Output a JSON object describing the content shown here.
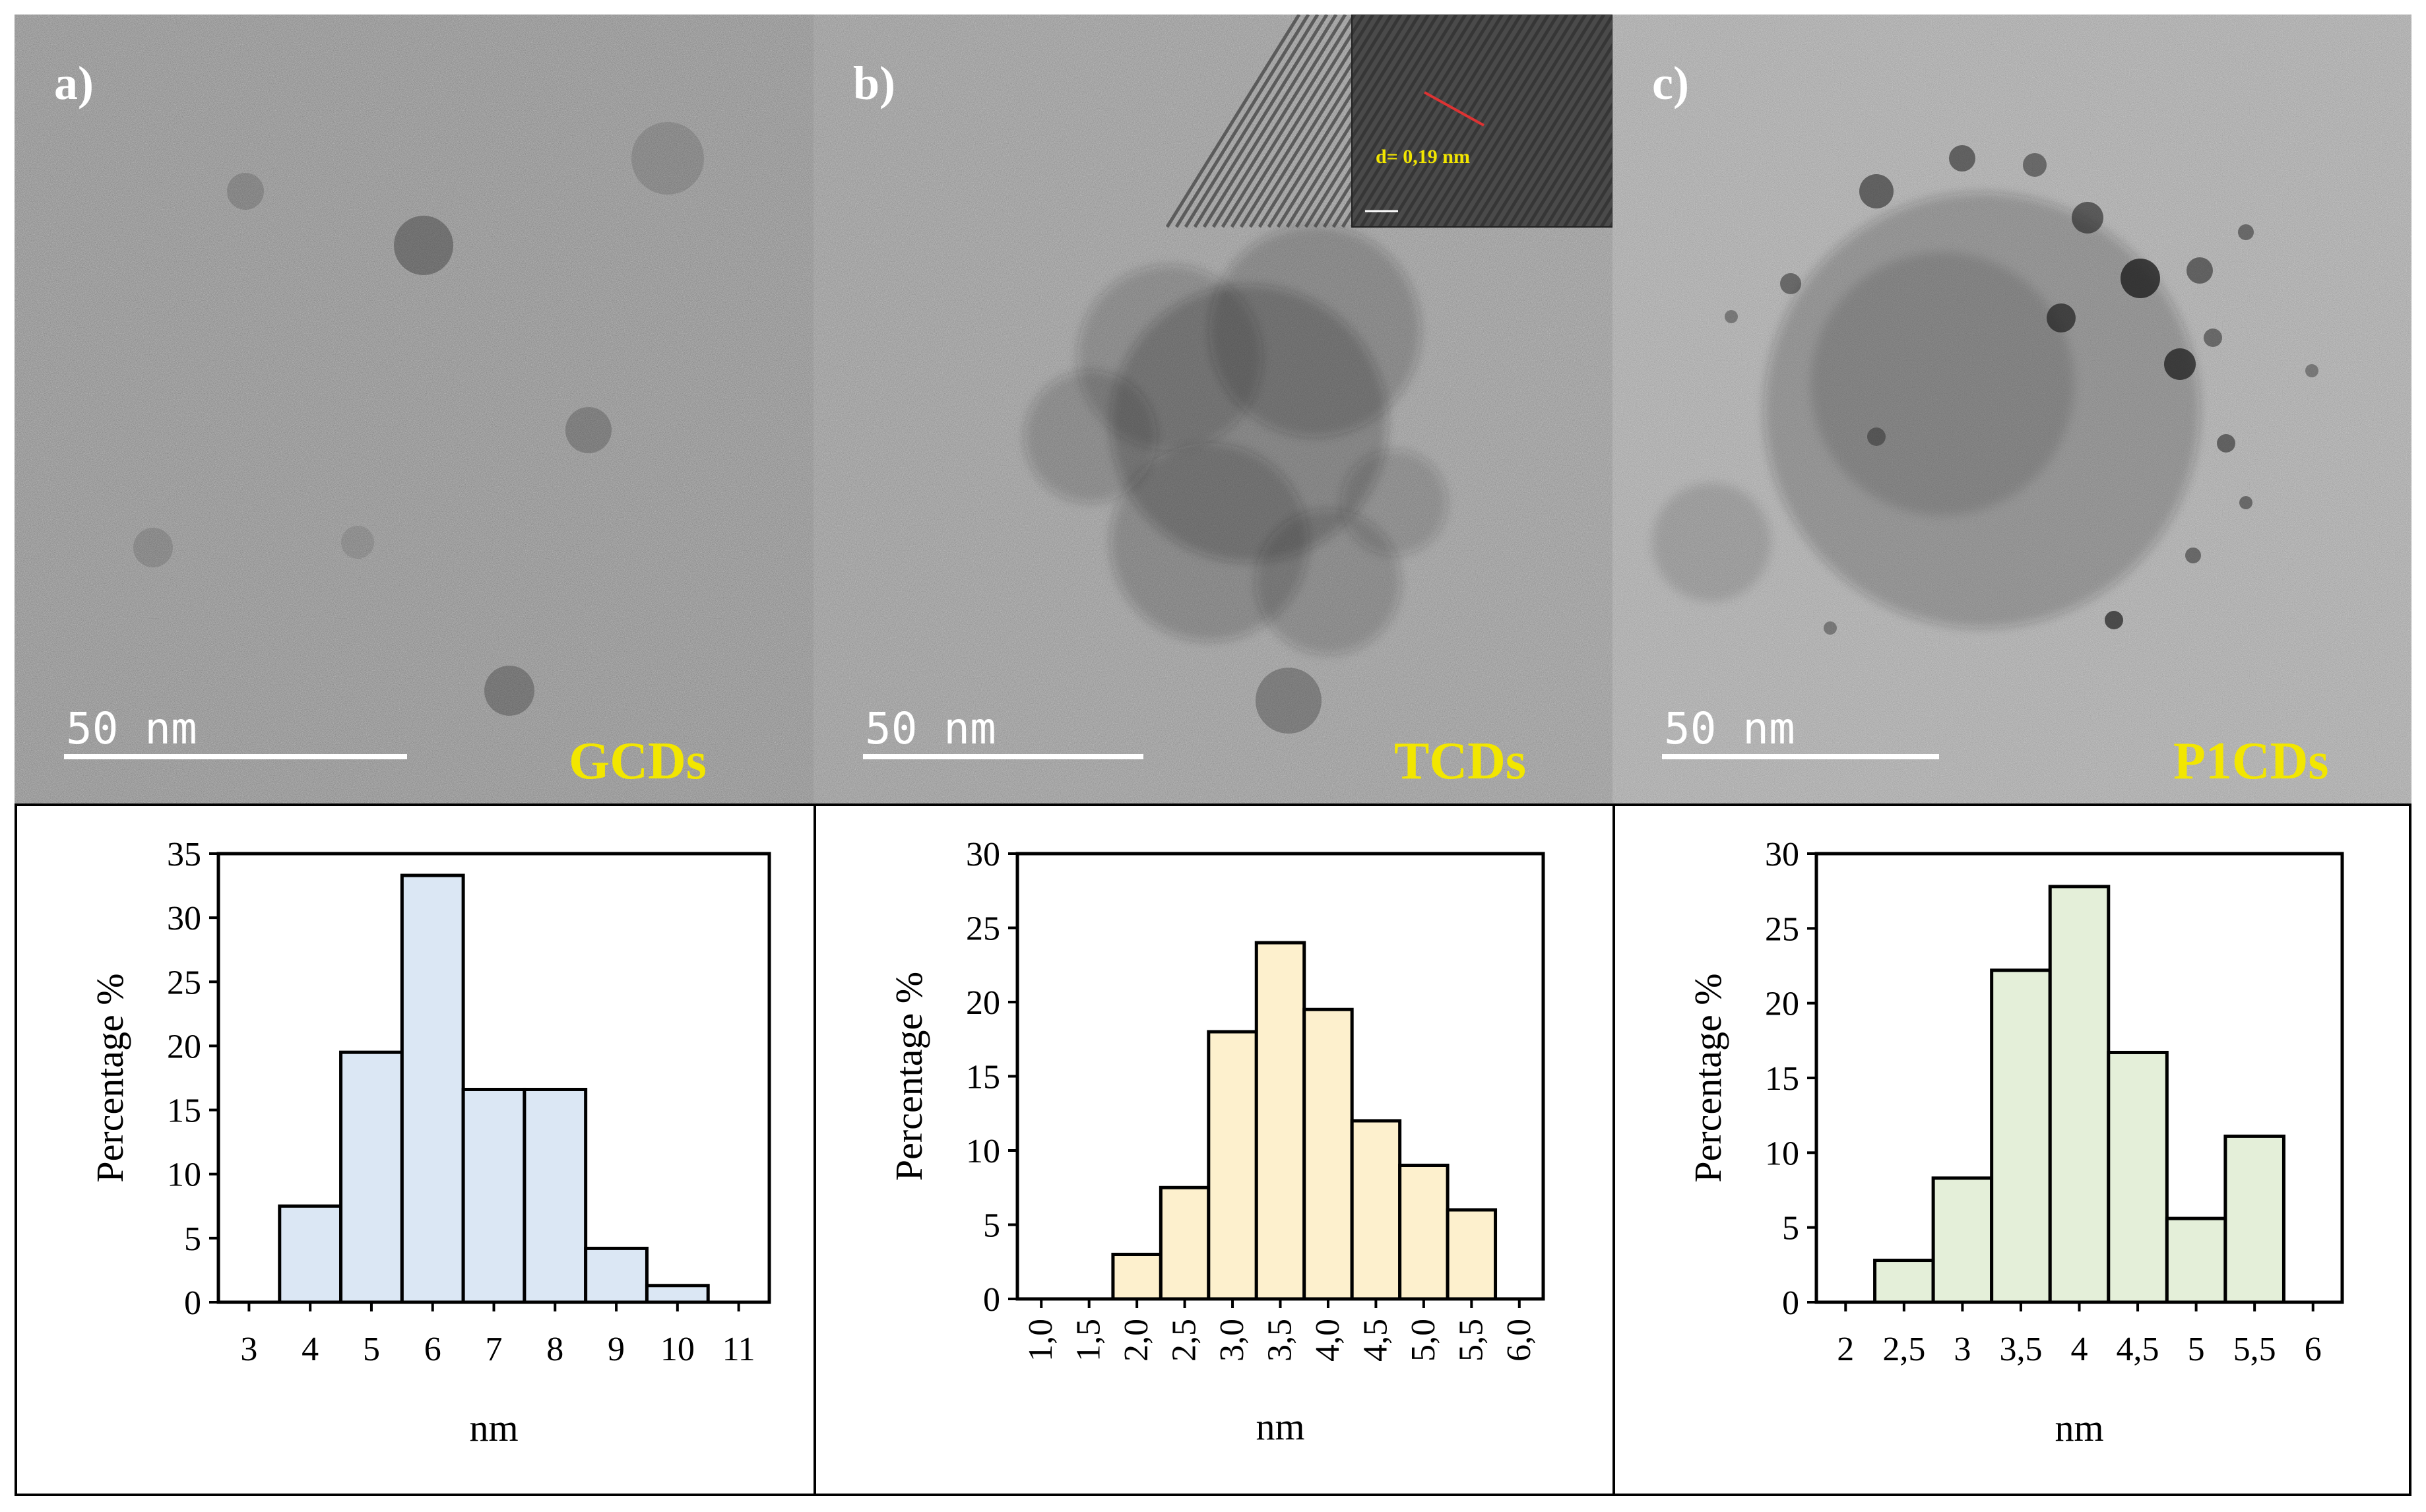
{
  "panels": [
    {
      "letter": "a)",
      "sample": "GCDs",
      "scale_label": "50 nm",
      "bg": "#8a8a8a",
      "inset": null
    },
    {
      "letter": "b)",
      "sample": "TCDs",
      "scale_label": "50 nm",
      "bg": "#939393",
      "inset": {
        "label": "d= 0,19 nm"
      }
    },
    {
      "letter": "c)",
      "sample": "P1CDs",
      "scale_label": "50 nm",
      "bg": "#a2a2a2",
      "inset": null
    }
  ],
  "colors": {
    "label_white": "#ffffff",
    "label_yellow": "#f2e600",
    "bar_stroke": "#000000"
  },
  "chart_data": [
    {
      "type": "bar",
      "ylabel": "Percentage %",
      "xlabel": "nm",
      "ylim": [
        0,
        35
      ],
      "yticks": [
        0,
        5,
        10,
        15,
        20,
        25,
        30,
        35
      ],
      "xtick_labels": [
        "3",
        "4",
        "5",
        "6",
        "7",
        "8",
        "9",
        "10",
        "11"
      ],
      "xtick_rotate": false,
      "bar_color": "#dbe7f4",
      "bars": [
        {
          "x": 4,
          "value": 7.5
        },
        {
          "x": 5,
          "value": 19.5
        },
        {
          "x": 6,
          "value": 33.3
        },
        {
          "x": 7,
          "value": 16.6
        },
        {
          "x": 8,
          "value": 16.6
        },
        {
          "x": 9,
          "value": 4.2
        },
        {
          "x": 10,
          "value": 1.3
        }
      ]
    },
    {
      "type": "bar",
      "ylabel": "Percentage %",
      "xlabel": "nm",
      "ylim": [
        0,
        30
      ],
      "yticks": [
        0,
        5,
        10,
        15,
        20,
        25,
        30
      ],
      "xtick_labels": [
        "1,0",
        "1,5",
        "2,0",
        "2,5",
        "3,0",
        "3,5",
        "4,0",
        "4,5",
        "5,0",
        "5,5",
        "6,0"
      ],
      "xtick_rotate": true,
      "bar_color": "#fdf0cd",
      "bars": [
        {
          "x": 2.0,
          "value": 3.0
        },
        {
          "x": 2.5,
          "value": 7.5
        },
        {
          "x": 3.0,
          "value": 18.0
        },
        {
          "x": 3.5,
          "value": 24.0
        },
        {
          "x": 4.0,
          "value": 19.5
        },
        {
          "x": 4.5,
          "value": 12.0
        },
        {
          "x": 5.0,
          "value": 9.0
        },
        {
          "x": 5.5,
          "value": 6.0
        }
      ]
    },
    {
      "type": "bar",
      "ylabel": "Percentage %",
      "xlabel": "nm",
      "ylim": [
        0,
        30
      ],
      "yticks": [
        0,
        5,
        10,
        15,
        20,
        25,
        30
      ],
      "xtick_labels": [
        "2",
        "2,5",
        "3",
        "3,5",
        "4",
        "4,5",
        "5",
        "5,5",
        "6"
      ],
      "xtick_rotate": false,
      "bar_color": "#e4efd9",
      "bars": [
        {
          "x": 2.5,
          "value": 2.8
        },
        {
          "x": 3.0,
          "value": 8.3
        },
        {
          "x": 3.5,
          "value": 22.2
        },
        {
          "x": 4.0,
          "value": 27.8
        },
        {
          "x": 4.5,
          "value": 16.7
        },
        {
          "x": 5.0,
          "value": 5.6
        },
        {
          "x": 5.5,
          "value": 11.1
        }
      ]
    }
  ]
}
